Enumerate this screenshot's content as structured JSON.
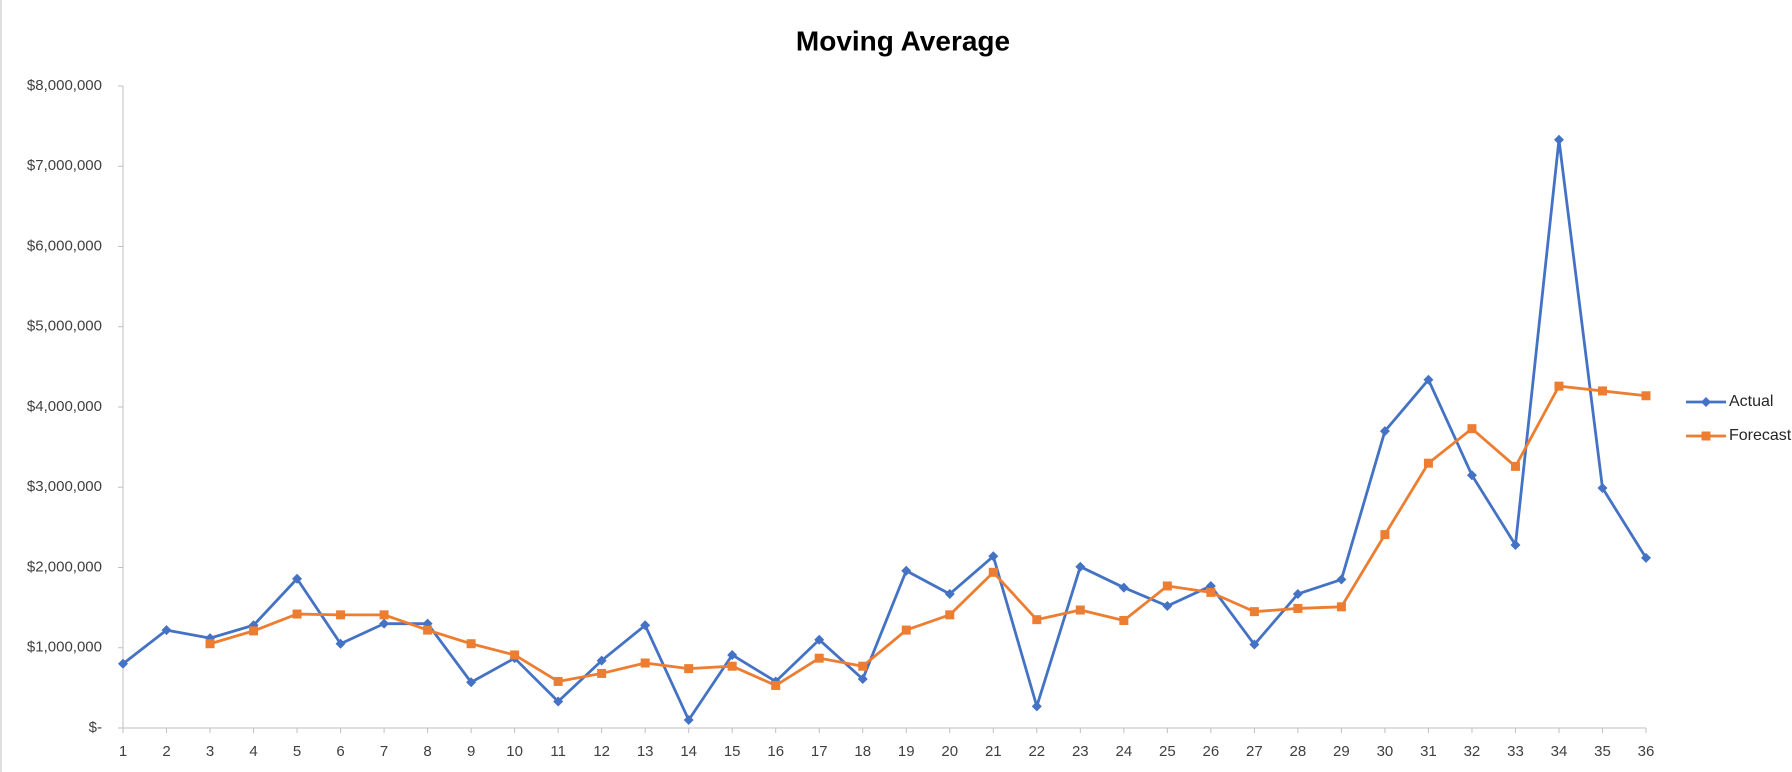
{
  "chart_data": {
    "type": "line",
    "title": "Moving Average",
    "categories": [
      "1",
      "2",
      "3",
      "4",
      "5",
      "6",
      "7",
      "8",
      "9",
      "10",
      "11",
      "12",
      "13",
      "14",
      "15",
      "16",
      "17",
      "18",
      "19",
      "20",
      "21",
      "22",
      "23",
      "24",
      "25",
      "26",
      "27",
      "28",
      "29",
      "30",
      "31",
      "32",
      "33",
      "34",
      "35",
      "36"
    ],
    "series": [
      {
        "name": "Actual",
        "color": "#4472c4",
        "marker": "diamond",
        "values": [
          800000,
          1220000,
          1120000,
          1280000,
          1860000,
          1050000,
          1300000,
          1300000,
          570000,
          870000,
          330000,
          840000,
          1280000,
          100000,
          910000,
          580000,
          1100000,
          610000,
          1960000,
          1670000,
          2140000,
          270000,
          2010000,
          1750000,
          1520000,
          1770000,
          1040000,
          1670000,
          1850000,
          3700000,
          4340000,
          3150000,
          2280000,
          7330000,
          2990000,
          2120000
        ]
      },
      {
        "name": "Forecast",
        "color": "#ed7d31",
        "marker": "square",
        "values": [
          null,
          null,
          1050000,
          1210000,
          1420000,
          1410000,
          1410000,
          1220000,
          1050000,
          910000,
          580000,
          680000,
          810000,
          740000,
          770000,
          530000,
          870000,
          770000,
          1220000,
          1410000,
          1940000,
          1350000,
          1470000,
          1340000,
          1770000,
          1690000,
          1450000,
          1490000,
          1510000,
          2410000,
          3300000,
          3730000,
          3260000,
          4260000,
          4200000,
          4140000
        ]
      }
    ],
    "ylim": [
      0,
      8000000
    ],
    "yticks": [
      {
        "value": 0,
        "label": "$-"
      },
      {
        "value": 1000000,
        "label": "$1,000,000"
      },
      {
        "value": 2000000,
        "label": "$2,000,000"
      },
      {
        "value": 3000000,
        "label": "$3,000,000"
      },
      {
        "value": 4000000,
        "label": "$4,000,000"
      },
      {
        "value": 5000000,
        "label": "$5,000,000"
      },
      {
        "value": 6000000,
        "label": "$6,000,000"
      },
      {
        "value": 7000000,
        "label": "$7,000,000"
      },
      {
        "value": 8000000,
        "label": "$8,000,000"
      }
    ],
    "grid": false,
    "legend": "right"
  }
}
